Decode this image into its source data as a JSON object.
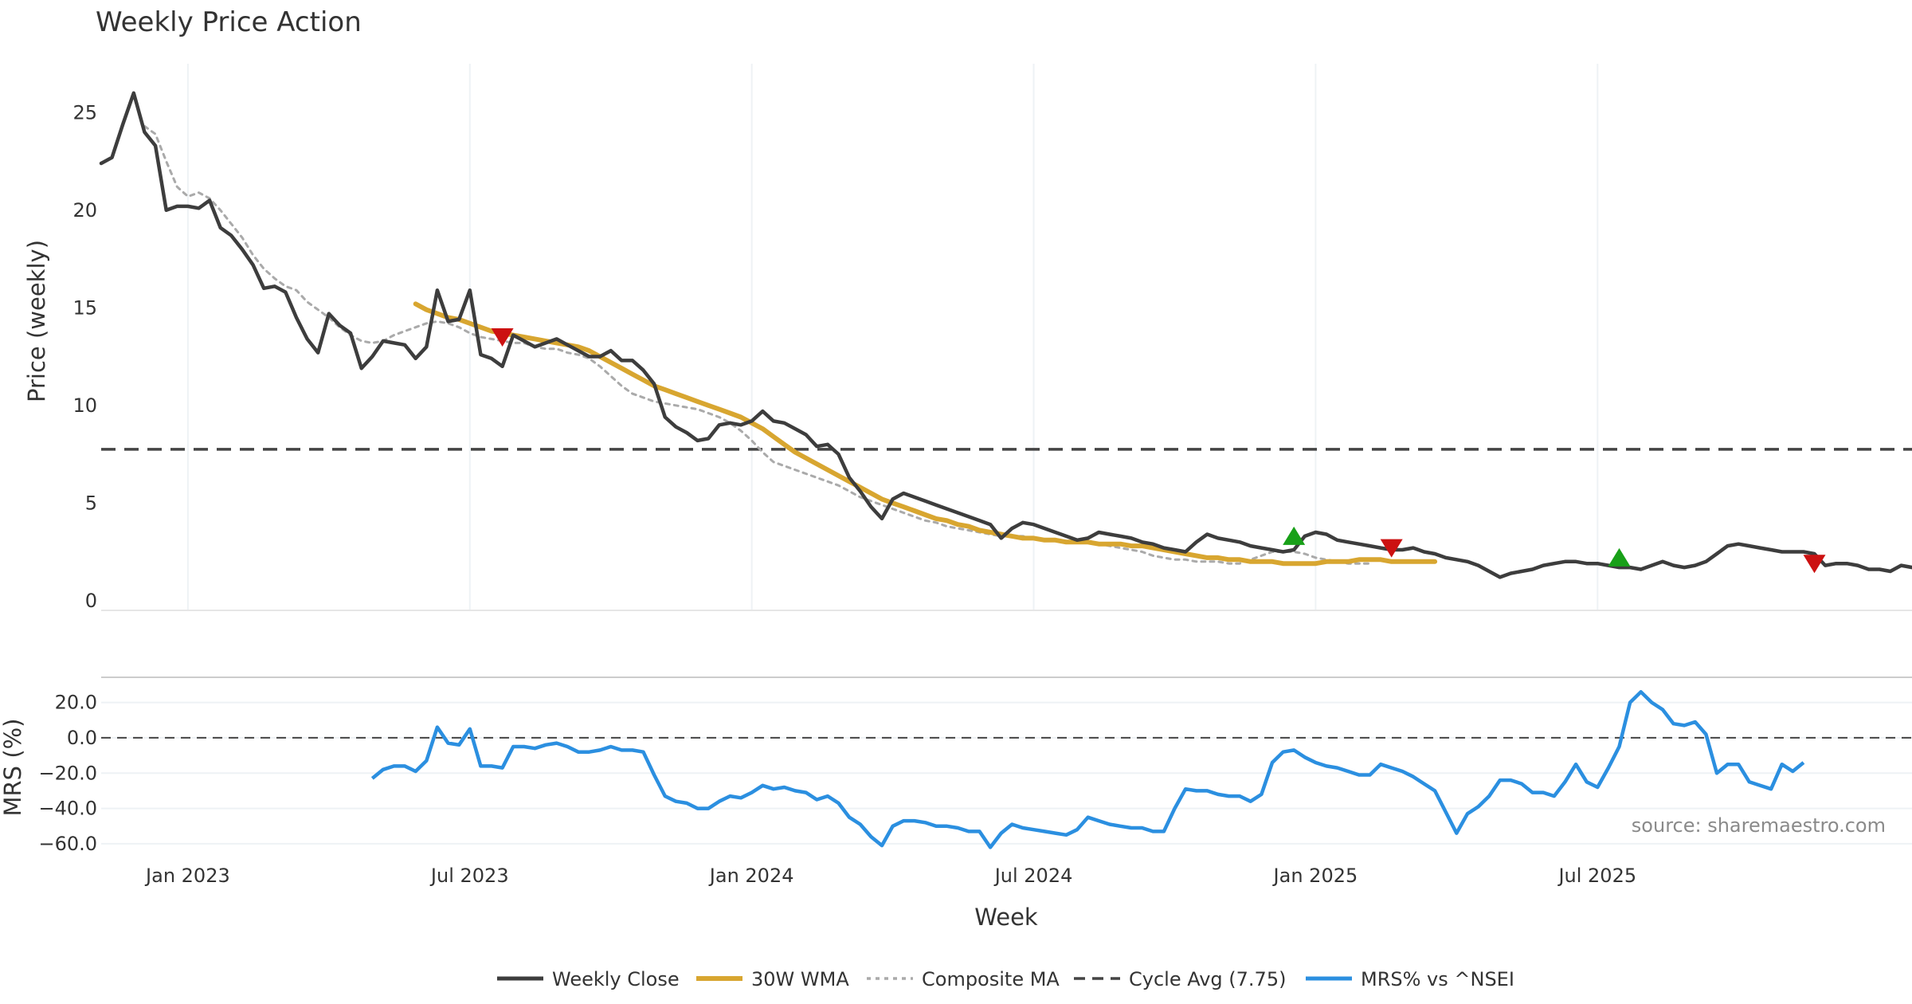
{
  "chart_data": {
    "type": "line",
    "title": "Weekly Price Action",
    "xlabel": "Week",
    "x_ticks": [
      "Jan 2023",
      "Jul 2023",
      "Jan 2024",
      "Jul 2024",
      "Jan 2025",
      "Jul 2025"
    ],
    "x_tick_weeks": [
      0,
      26,
      52,
      78,
      104,
      130
    ],
    "x_range_weeks": [
      -8,
      159
    ],
    "price_panel": {
      "ylabel": "Price (weekly)",
      "ylim": [
        -0.5,
        27.5
      ],
      "y_ticks": [
        0,
        5,
        10,
        15,
        20,
        25
      ],
      "cycle_avg": 7.75
    },
    "mrs_panel": {
      "ylabel": "MRS (%)",
      "ylim": [
        -65,
        32
      ],
      "y_ticks": [
        "20.0",
        "0.0",
        "−20.0",
        "−40.0",
        "−60.0"
      ],
      "y_tick_values": [
        20,
        0,
        -20,
        -40,
        -60
      ],
      "zero_line": 0
    },
    "series": [
      {
        "name": "Weekly Close",
        "color": "#3d3d3d",
        "panel": "price",
        "start_week": -8,
        "values": [
          22.4,
          22.7,
          24.4,
          26.0,
          24.0,
          23.3,
          20.0,
          20.2,
          20.2,
          20.1,
          20.5,
          19.1,
          18.7,
          18.0,
          17.2,
          16.0,
          16.1,
          15.8,
          14.5,
          13.4,
          12.7,
          14.7,
          14.1,
          13.7,
          11.9,
          12.5,
          13.3,
          13.2,
          13.1,
          12.4,
          13.0,
          15.9,
          14.3,
          14.4,
          15.9,
          12.6,
          12.4,
          12.0,
          13.6,
          13.3,
          13.0,
          13.2,
          13.4,
          13.1,
          12.8,
          12.5,
          12.5,
          12.8,
          12.3,
          12.3,
          11.8,
          11.1,
          9.4,
          8.9,
          8.6,
          8.2,
          8.3,
          9.0,
          9.1,
          9.0,
          9.2,
          9.7,
          9.2,
          9.1,
          8.8,
          8.5,
          7.9,
          8.0,
          7.5,
          6.3,
          5.6,
          4.8,
          4.2,
          5.2,
          5.5,
          5.3,
          5.1,
          4.9,
          4.7,
          4.5,
          4.3,
          4.1,
          3.9,
          3.2,
          3.7,
          4.0,
          3.9,
          3.7,
          3.5,
          3.3,
          3.1,
          3.2,
          3.5,
          3.4,
          3.3,
          3.2,
          3.0,
          2.9,
          2.7,
          2.6,
          2.5,
          3.0,
          3.4,
          3.2,
          3.1,
          3.0,
          2.8,
          2.7,
          2.6,
          2.5,
          2.6,
          3.3,
          3.5,
          3.4,
          3.1,
          3.0,
          2.9,
          2.8,
          2.7,
          2.6,
          2.6,
          2.7,
          2.5,
          2.4,
          2.2,
          2.1,
          2.0,
          1.8,
          1.5,
          1.2,
          1.4,
          1.5,
          1.6,
          1.8,
          1.9,
          2.0,
          2.0,
          1.9,
          1.9,
          1.8,
          1.7,
          1.7,
          1.6,
          1.8,
          2.0,
          1.8,
          1.7,
          1.8,
          2.0,
          2.4,
          2.8,
          2.9,
          2.8,
          2.7,
          2.6,
          2.5,
          2.5,
          2.5,
          2.4,
          1.8,
          1.9,
          1.9,
          1.8,
          1.6,
          1.6,
          1.5,
          1.8,
          1.7,
          1.8
        ]
      },
      {
        "name": "30W WMA",
        "color": "#d8a630",
        "panel": "price",
        "start_week": 21,
        "values": [
          15.2,
          14.9,
          14.7,
          14.5,
          14.4,
          14.2,
          14.0,
          13.8,
          13.7,
          13.6,
          13.5,
          13.4,
          13.3,
          13.2,
          13.1,
          13.0,
          12.8,
          12.5,
          12.2,
          11.9,
          11.6,
          11.3,
          11.0,
          10.8,
          10.6,
          10.4,
          10.2,
          10.0,
          9.8,
          9.6,
          9.4,
          9.1,
          8.8,
          8.4,
          8.0,
          7.6,
          7.3,
          7.0,
          6.7,
          6.4,
          6.1,
          5.8,
          5.5,
          5.2,
          5.0,
          4.8,
          4.6,
          4.4,
          4.2,
          4.1,
          3.9,
          3.8,
          3.6,
          3.5,
          3.4,
          3.3,
          3.2,
          3.2,
          3.1,
          3.1,
          3.0,
          3.0,
          3.0,
          2.9,
          2.9,
          2.9,
          2.8,
          2.8,
          2.7,
          2.6,
          2.5,
          2.4,
          2.3,
          2.2,
          2.2,
          2.1,
          2.1,
          2.0,
          2.0,
          2.0,
          1.9,
          1.9,
          1.9,
          1.9,
          2.0,
          2.0,
          2.0,
          2.1,
          2.1,
          2.1,
          2.0,
          2.0,
          2.0,
          2.0,
          2.0
        ]
      },
      {
        "name": "Composite MA",
        "color": "#aaaaaa",
        "panel": "price",
        "start_week": -4,
        "values": [
          24.3,
          23.9,
          22.5,
          21.2,
          20.7,
          20.9,
          20.6,
          20.0,
          19.3,
          18.6,
          17.7,
          17.0,
          16.5,
          16.1,
          15.9,
          15.3,
          14.9,
          14.5,
          14.0,
          13.6,
          13.3,
          13.2,
          13.3,
          13.6,
          13.8,
          14.0,
          14.2,
          14.3,
          14.2,
          14.0,
          13.7,
          13.5,
          13.4,
          13.3,
          13.2,
          13.2,
          13.0,
          12.9,
          12.9,
          12.7,
          12.6,
          12.4,
          12.0,
          11.5,
          11.0,
          10.6,
          10.4,
          10.2,
          10.1,
          10.0,
          9.9,
          9.8,
          9.6,
          9.4,
          9.1,
          8.7,
          8.2,
          7.6,
          7.1,
          6.9,
          6.7,
          6.5,
          6.3,
          6.1,
          5.9,
          5.6,
          5.3,
          5.1,
          4.9,
          4.7,
          4.5,
          4.3,
          4.1,
          4.0,
          3.8,
          3.7,
          3.6,
          3.5,
          3.4,
          3.3,
          3.3,
          3.3,
          3.2,
          3.1,
          3.1,
          3.0,
          3.0,
          3.0,
          2.9,
          2.8,
          2.7,
          2.6,
          2.5,
          2.3,
          2.2,
          2.1,
          2.1,
          2.0,
          2.0,
          2.0,
          1.9,
          1.9,
          2.1,
          2.3,
          2.5,
          2.5,
          2.5,
          2.4,
          2.2,
          2.1,
          2.0,
          1.9,
          1.9,
          1.9
        ]
      },
      {
        "name": "Cycle Avg (7.75)",
        "color": "#444444",
        "panel": "price",
        "style": "dashed",
        "constant": 7.75
      },
      {
        "name": "MRS% vs ^NSEI",
        "color": "#2b8fe0",
        "panel": "mrs",
        "start_week": 17,
        "values": [
          -23,
          -18,
          -16,
          -16,
          -19,
          -13,
          6,
          -3,
          -4,
          5,
          -16,
          -16,
          -17,
          -5,
          -5,
          -6,
          -4,
          -3,
          -5,
          -8,
          -8,
          -7,
          -5,
          -7,
          -7,
          -8,
          -21,
          -33,
          -36,
          -37,
          -40,
          -40,
          -36,
          -33,
          -34,
          -31,
          -27,
          -29,
          -28,
          -30,
          -31,
          -35,
          -33,
          -37,
          -45,
          -49,
          -56,
          -61,
          -50,
          -47,
          -47,
          -48,
          -50,
          -50,
          -51,
          -53,
          -53,
          -62,
          -54,
          -49,
          -51,
          -52,
          -53,
          -54,
          -55,
          -52,
          -45,
          -47,
          -49,
          -50,
          -51,
          -51,
          -53,
          -53,
          -40,
          -29,
          -30,
          -30,
          -32,
          -33,
          -33,
          -36,
          -32,
          -14,
          -8,
          -7,
          -11,
          -14,
          -16,
          -17,
          -19,
          -21,
          -21,
          -15,
          -17,
          -19,
          -22,
          -26,
          -30,
          -42,
          -54,
          -43,
          -39,
          -33,
          -24,
          -24,
          -26,
          -31,
          -31,
          -33,
          -25,
          -15,
          -25,
          -28,
          -17,
          -5,
          20,
          26,
          20,
          16,
          8,
          7,
          9,
          2,
          -20,
          -15,
          -15,
          -25,
          -27,
          -29,
          -15,
          -19,
          -14
        ]
      }
    ],
    "signals": [
      {
        "type": "sell",
        "week": 29,
        "value": 13.5,
        "color": "#cc1111"
      },
      {
        "type": "buy",
        "week": 102,
        "value": 3.3,
        "color": "#18a018"
      },
      {
        "type": "sell",
        "week": 111,
        "value": 2.7,
        "color": "#cc1111"
      },
      {
        "type": "buy",
        "week": 132,
        "value": 2.2,
        "color": "#18a018"
      },
      {
        "type": "sell",
        "week": 150,
        "value": 1.9,
        "color": "#cc1111"
      }
    ],
    "annotation": "source: sharemaestro.com",
    "legend_position": "bottom-center"
  }
}
